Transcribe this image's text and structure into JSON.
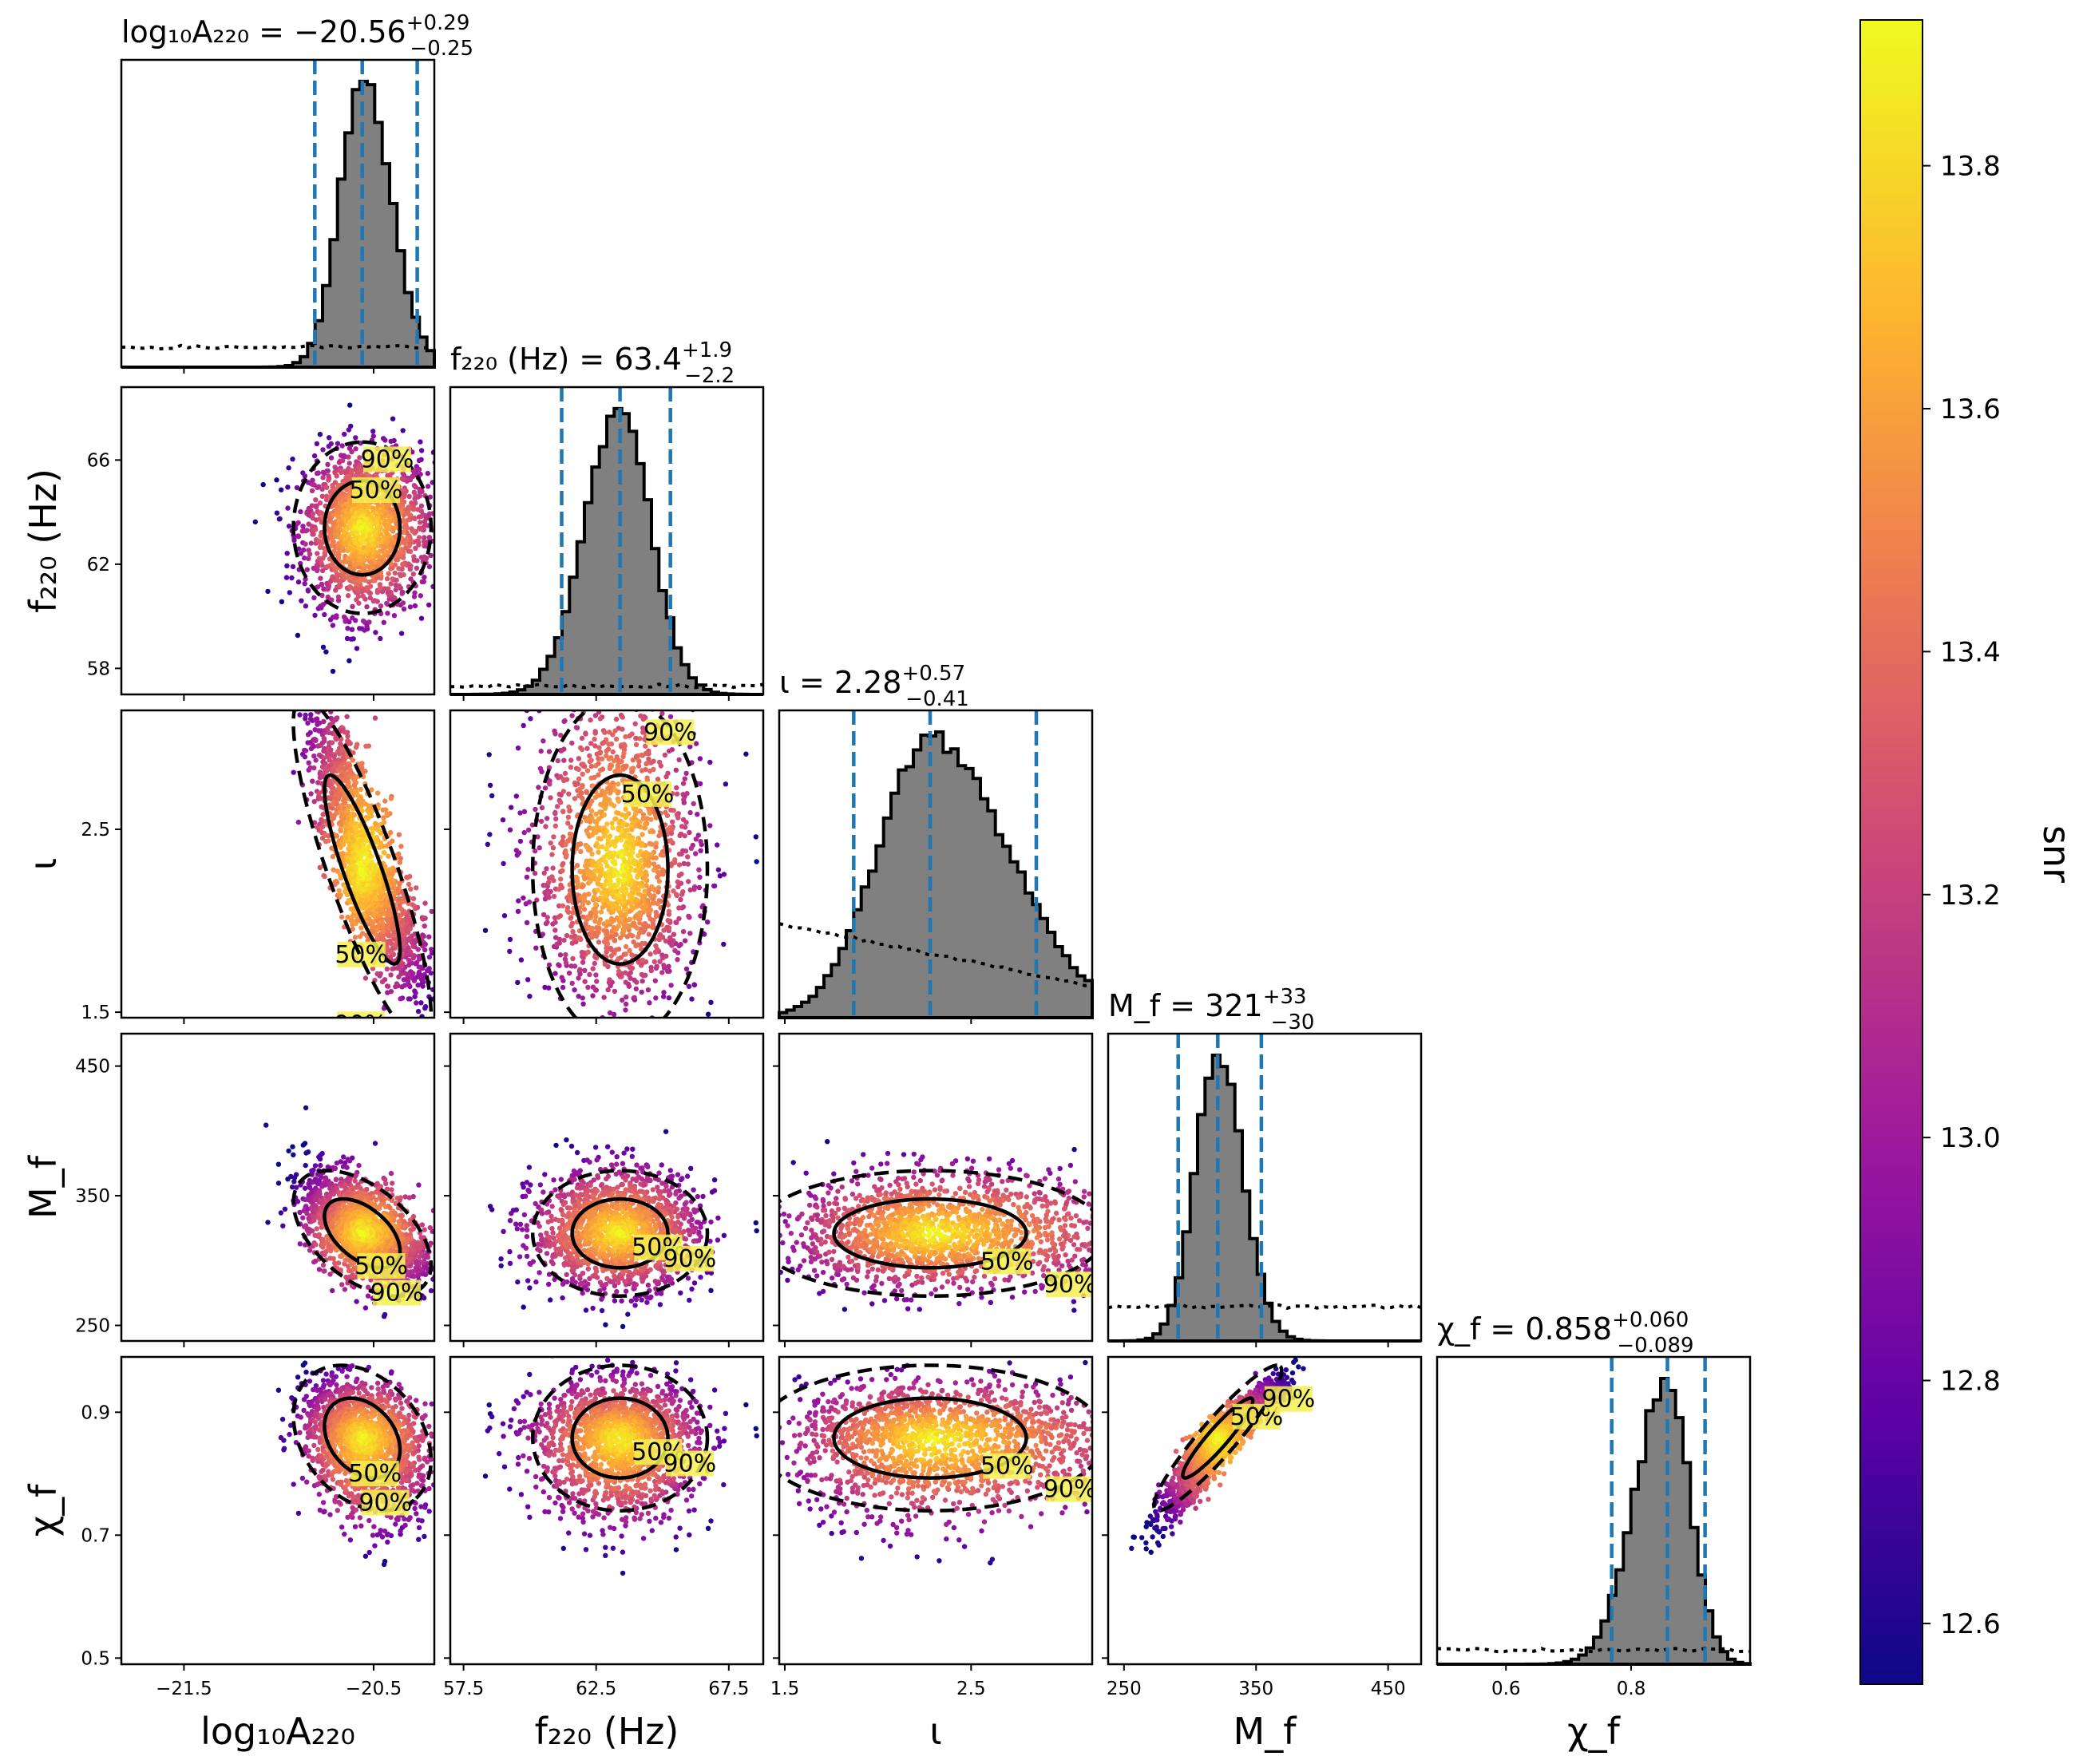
{
  "chart_data": {
    "type": "corner-plot",
    "colorbar": {
      "label": "snr",
      "range": [
        12.55,
        13.92
      ],
      "ticks": [
        "12.6",
        "12.8",
        "13.0",
        "13.2",
        "13.4",
        "13.6",
        "13.8"
      ],
      "tick_values": [
        12.6,
        12.8,
        13.0,
        13.2,
        13.4,
        13.6,
        13.8
      ],
      "colors": [
        "#0d0887",
        "#5d01a6",
        "#9c179e",
        "#cc4778",
        "#ed7953",
        "#fdb42f",
        "#f0f921"
      ]
    },
    "params": [
      {
        "key": "logA",
        "axis_label": "log₁₀A₂₂₀",
        "title_name": "log₁₀A₂₂₀",
        "title_value": "−20.56",
        "title_plus": "+0.29",
        "title_minus": "−0.25",
        "range": [
          -21.83,
          -20.18
        ],
        "ticks": [
          -21.5,
          -20.5
        ],
        "tick_labels": [
          "−21.5",
          "−20.5"
        ],
        "median": -20.56,
        "lo": -20.81,
        "hi": -20.27,
        "sigma_lo": 0.12,
        "sigma_hi": 0.15,
        "hist_peak": 1.0,
        "prior_level": 0.07
      },
      {
        "key": "f220",
        "axis_label": "f₂₂₀ (Hz)",
        "title_name": "f₂₂₀ (Hz)",
        "title_value": "63.4",
        "title_plus": "+1.9",
        "title_minus": "−2.2",
        "range": [
          57.0,
          68.8
        ],
        "ticks": [
          57.5,
          62.5,
          67.5
        ],
        "tick_labels": [
          "57.5",
          "62.5",
          "67.5"
        ],
        "axis2_ticks": [
          58,
          62,
          66
        ],
        "axis2_tick_labels": [
          "58",
          "62",
          "66"
        ],
        "range_y": [
          57.0,
          68.8
        ],
        "median": 63.4,
        "lo": 61.2,
        "hi": 65.3,
        "sigma_lo": 1.3,
        "sigma_hi": 1.15,
        "hist_peak": 1.0,
        "prior_level": 0.03
      },
      {
        "key": "iota",
        "axis_label": "ι",
        "title_name": "ι",
        "title_value": "2.28",
        "title_plus": "+0.57",
        "title_minus": "−0.41",
        "range": [
          1.47,
          3.15
        ],
        "ticks": [
          1.5,
          2.5
        ],
        "tick_labels": [
          "1.5",
          "2.5"
        ],
        "median": 2.28,
        "lo": 1.87,
        "hi": 2.85,
        "sigma_lo": 0.28,
        "sigma_hi": 0.42,
        "hist_peak": 1.0,
        "prior_level": 0.33
      },
      {
        "key": "Mf",
        "axis_label": "M_f",
        "title_name": "M_f",
        "title_value": "321",
        "title_plus": "+33",
        "title_minus": "−30",
        "range": [
          238,
          475
        ],
        "ticks": [
          250,
          350,
          450
        ],
        "tick_labels": [
          "250",
          "350",
          "450"
        ],
        "median": 321,
        "lo": 291,
        "hi": 354,
        "sigma_lo": 17,
        "sigma_hi": 19,
        "hist_peak": 1.0,
        "prior_level": 0.12
      },
      {
        "key": "chif",
        "axis_label": "χ_f",
        "title_name": "χ_f",
        "title_value": "0.858",
        "title_plus": "+0.060",
        "title_minus": "−0.089",
        "range": [
          0.49,
          0.99
        ],
        "ticks": [
          0.5,
          0.7,
          0.9
        ],
        "tick_labels": [
          "0.5",
          "0.7",
          "0.9"
        ],
        "axis_x_ticks": [
          0.6,
          0.8
        ],
        "axis_x_tick_labels": [
          "0.6",
          "0.8"
        ],
        "median": 0.858,
        "lo": 0.769,
        "hi": 0.918,
        "sigma_lo": 0.052,
        "sigma_hi": 0.036,
        "hist_peak": 1.0,
        "prior_level": 0.05
      }
    ],
    "contour_labels": [
      "50%",
      "90%"
    ],
    "correlations": {
      "logA|iota": -0.85,
      "logA|Mf": -0.5,
      "logA|chif": -0.3,
      "Mf|chif": 0.93,
      "iota|chif": 0.0,
      "f220|Mf": 0.0,
      "f220|chif": 0.0
    }
  }
}
